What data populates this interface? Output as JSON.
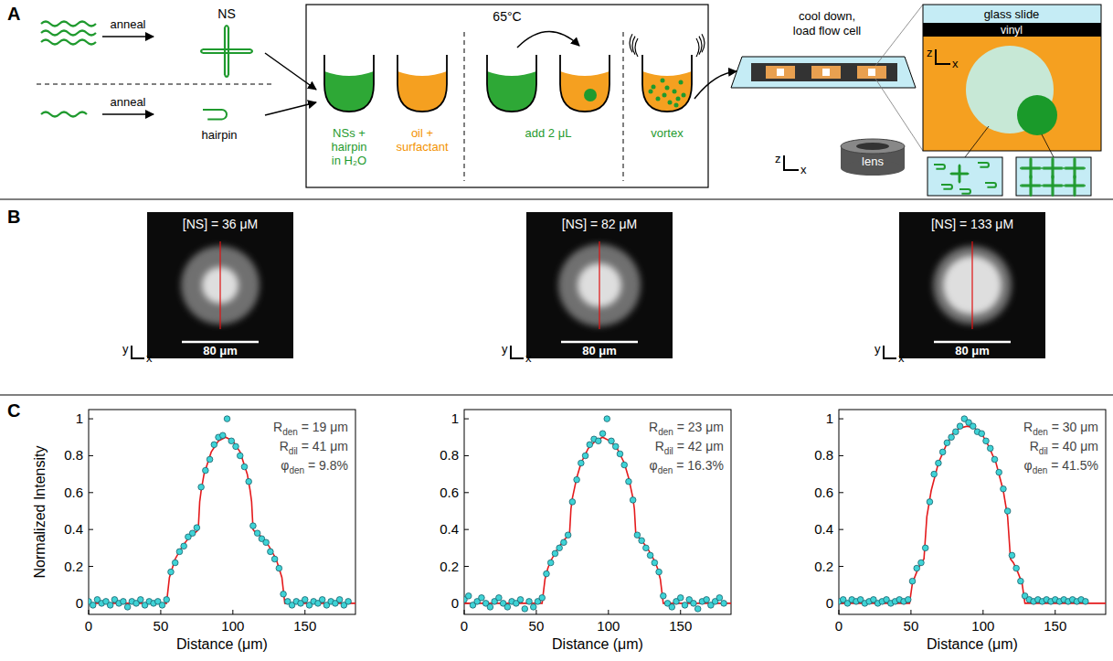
{
  "panels": {
    "a": {
      "letter": "A",
      "top": {
        "step": "anneal",
        "product": "NS"
      },
      "bottom": {
        "step": "anneal",
        "product": "hairpin"
      },
      "heater": "65°C",
      "tubes": [
        "NSs + hairpin in H₂O",
        "oil + surfactant",
        "add 2 μL",
        "vortex"
      ],
      "transfer": "cool down, load flow cell",
      "layers": [
        "glass slide",
        "vinyl"
      ],
      "axes": {
        "vertical": "z",
        "horizontal": "x"
      },
      "lens": "lens"
    },
    "b": {
      "letter": "B",
      "axes": {
        "vertical": "y",
        "horizontal": "x"
      },
      "images": [
        {
          "title": "[NS] = 36 μM",
          "scale_bar": {
            "value": 80,
            "label": "80 μm"
          }
        },
        {
          "title": "[NS] = 82 μM",
          "scale_bar": {
            "value": 80,
            "label": "80 μm"
          }
        },
        {
          "title": "[NS] = 133 μM",
          "scale_bar": {
            "value": 80,
            "label": "80 μm"
          }
        }
      ]
    },
    "c": {
      "letter": "C"
    }
  },
  "chart_data": [
    {
      "type": "scatter",
      "x_label": "Distance (μm)",
      "y_label": "Normalized Intensity",
      "xlim": [
        0,
        185
      ],
      "ylim": [
        -0.06,
        1.05
      ],
      "xticks": [
        0,
        50,
        100,
        150
      ],
      "yticks": [
        0,
        0.2,
        0.4,
        0.6,
        0.8,
        1
      ],
      "grid": false,
      "annotations": [
        {
          "symbol": "R",
          "sub": "den",
          "text": " = 19 μm"
        },
        {
          "symbol": "R",
          "sub": "dil",
          "text": " = 41 μm"
        },
        {
          "symbol": "φ",
          "sub": "den",
          "text": " = 9.8%"
        }
      ],
      "series": [
        {
          "type": "scatter",
          "color": "#3fd3d6",
          "marker": "circle",
          "x": [
            0,
            3,
            6,
            9,
            12,
            15,
            18,
            21,
            24,
            27,
            30,
            33,
            36,
            39,
            42,
            45,
            48,
            51,
            54,
            57,
            60,
            63,
            66,
            69,
            72,
            75,
            78,
            81,
            84,
            87,
            90,
            93,
            96,
            99,
            102,
            105,
            108,
            111,
            114,
            117,
            120,
            123,
            126,
            129,
            132,
            135,
            138,
            141,
            144,
            147,
            150,
            153,
            156,
            159,
            162,
            165,
            168,
            171,
            174,
            177,
            180
          ],
          "values": [
            0.01,
            -0.01,
            0.02,
            0,
            0.01,
            -0.01,
            0.02,
            0,
            0.01,
            -0.02,
            0.01,
            0,
            0.02,
            -0.01,
            0.01,
            0,
            0.01,
            -0.01,
            0.02,
            0.17,
            0.22,
            0.28,
            0.31,
            0.36,
            0.38,
            0.41,
            0.63,
            0.72,
            0.78,
            0.86,
            0.9,
            0.91,
            1,
            0.88,
            0.85,
            0.8,
            0.74,
            0.66,
            0.42,
            0.38,
            0.35,
            0.33,
            0.28,
            0.24,
            0.19,
            0.05,
            0.01,
            -0.01,
            0.01,
            0,
            0.02,
            -0.01,
            0.01,
            0,
            0.02,
            -0.01,
            0.01,
            0,
            0.02,
            -0.01,
            0.01
          ]
        },
        {
          "type": "line",
          "color": "#e41a1c",
          "line_style": "solid",
          "x": [
            0,
            54,
            56,
            58,
            60,
            65,
            70,
            75,
            76,
            77,
            78,
            80,
            85,
            90,
            95,
            100,
            105,
            110,
            112,
            113,
            114,
            115,
            120,
            125,
            130,
            132,
            134,
            136,
            185
          ],
          "values": [
            0,
            0,
            0.14,
            0.19,
            0.24,
            0.31,
            0.36,
            0.39,
            0.4,
            0.55,
            0.61,
            0.7,
            0.82,
            0.88,
            0.9,
            0.88,
            0.82,
            0.7,
            0.61,
            0.55,
            0.4,
            0.39,
            0.36,
            0.31,
            0.24,
            0.19,
            0.14,
            0,
            0
          ]
        }
      ]
    },
    {
      "type": "scatter",
      "x_label": "Distance (μm)",
      "xlim": [
        0,
        185
      ],
      "ylim": [
        -0.06,
        1.05
      ],
      "xticks": [
        0,
        50,
        100,
        150
      ],
      "yticks": [
        0,
        0.2,
        0.4,
        0.6,
        0.8,
        1
      ],
      "grid": false,
      "annotations": [
        {
          "symbol": "R",
          "sub": "den",
          "text": " = 23 μm"
        },
        {
          "symbol": "R",
          "sub": "dil",
          "text": " = 42 μm"
        },
        {
          "symbol": "φ",
          "sub": "den",
          "text": " = 16.3%"
        }
      ],
      "series": [
        {
          "type": "scatter",
          "color": "#3fd3d6",
          "marker": "circle",
          "x": [
            0,
            3,
            6,
            9,
            12,
            15,
            18,
            21,
            24,
            27,
            30,
            33,
            36,
            39,
            42,
            45,
            48,
            51,
            54,
            57,
            60,
            63,
            66,
            69,
            72,
            75,
            78,
            81,
            84,
            87,
            90,
            93,
            96,
            99,
            102,
            105,
            108,
            111,
            114,
            117,
            120,
            123,
            126,
            129,
            132,
            135,
            138,
            141,
            144,
            147,
            150,
            153,
            156,
            159,
            162,
            165,
            168,
            171,
            174,
            177,
            180
          ],
          "values": [
            0.02,
            0.04,
            -0.01,
            0.01,
            0.03,
            0,
            -0.02,
            0.01,
            0.03,
            0,
            -0.02,
            0.01,
            0,
            0.02,
            -0.03,
            0.01,
            -0.02,
            0.01,
            0.03,
            0.16,
            0.22,
            0.27,
            0.3,
            0.33,
            0.37,
            0.55,
            0.67,
            0.76,
            0.8,
            0.86,
            0.89,
            0.88,
            0.92,
            1,
            0.88,
            0.85,
            0.81,
            0.75,
            0.66,
            0.56,
            0.37,
            0.34,
            0.3,
            0.26,
            0.22,
            0.17,
            0.04,
            0,
            -0.02,
            0.01,
            0.03,
            -0.01,
            0.02,
            0,
            -0.03,
            0.01,
            0.02,
            -0.01,
            0.01,
            0.03,
            0
          ]
        },
        {
          "type": "line",
          "color": "#e41a1c",
          "line_style": "solid",
          "x": [
            0,
            54,
            56,
            58,
            60,
            65,
            70,
            73,
            74,
            75,
            78,
            81,
            86,
            91,
            96,
            101,
            106,
            111,
            114,
            117,
            118,
            119,
            122,
            127,
            132,
            134,
            136,
            138,
            185
          ],
          "values": [
            0,
            0,
            0.13,
            0.19,
            0.23,
            0.3,
            0.35,
            0.37,
            0.51,
            0.57,
            0.68,
            0.76,
            0.84,
            0.88,
            0.9,
            0.88,
            0.84,
            0.76,
            0.68,
            0.57,
            0.51,
            0.37,
            0.35,
            0.3,
            0.23,
            0.19,
            0.13,
            0,
            0
          ]
        }
      ]
    },
    {
      "type": "scatter",
      "x_label": "Distance (μm)",
      "xlim": [
        0,
        185
      ],
      "ylim": [
        -0.06,
        1.05
      ],
      "xticks": [
        0,
        50,
        100,
        150
      ],
      "yticks": [
        0,
        0.2,
        0.4,
        0.6,
        0.8,
        1
      ],
      "grid": false,
      "annotations": [
        {
          "symbol": "R",
          "sub": "den",
          "text": " = 30 μm"
        },
        {
          "symbol": "R",
          "sub": "dil",
          "text": " = 40 μm"
        },
        {
          "symbol": "φ",
          "sub": "den",
          "text": " = 41.5%"
        }
      ],
      "series": [
        {
          "type": "scatter",
          "color": "#3fd3d6",
          "marker": "circle",
          "x": [
            0,
            3,
            6,
            9,
            12,
            15,
            18,
            21,
            24,
            27,
            30,
            33,
            36,
            39,
            42,
            45,
            48,
            51,
            54,
            57,
            60,
            63,
            66,
            69,
            72,
            75,
            78,
            81,
            84,
            87,
            90,
            93,
            96,
            99,
            102,
            105,
            108,
            111,
            114,
            117,
            120,
            123,
            126,
            129,
            132,
            135,
            138,
            141,
            144,
            147,
            150,
            153,
            156,
            159,
            162,
            165,
            168,
            171
          ],
          "values": [
            0.01,
            0.02,
            0,
            0.02,
            0.01,
            0.02,
            0,
            0.01,
            0.02,
            0,
            0.01,
            0.02,
            0,
            0.01,
            0.02,
            0.01,
            0.02,
            0.12,
            0.19,
            0.22,
            0.3,
            0.55,
            0.7,
            0.76,
            0.82,
            0.87,
            0.9,
            0.93,
            0.96,
            1,
            0.98,
            0.96,
            0.93,
            0.92,
            0.88,
            0.84,
            0.78,
            0.71,
            0.62,
            0.5,
            0.26,
            0.19,
            0.12,
            0.04,
            0.02,
            0.01,
            0.02,
            0.01,
            0.02,
            0.01,
            0.02,
            0.01,
            0.02,
            0.01,
            0.02,
            0.01,
            0.02,
            0.01
          ]
        },
        {
          "type": "line",
          "color": "#e41a1c",
          "line_style": "solid",
          "x": [
            0,
            49,
            51,
            54,
            57,
            59,
            61,
            64,
            69,
            74,
            79,
            84,
            89,
            94,
            99,
            104,
            109,
            114,
            117,
            119,
            121,
            124,
            127,
            129,
            185
          ],
          "values": [
            0,
            0,
            0.11,
            0.17,
            0.22,
            0.24,
            0.47,
            0.61,
            0.76,
            0.85,
            0.92,
            0.95,
            0.96,
            0.95,
            0.92,
            0.85,
            0.76,
            0.61,
            0.47,
            0.24,
            0.22,
            0.17,
            0.11,
            0,
            0
          ]
        }
      ]
    }
  ]
}
